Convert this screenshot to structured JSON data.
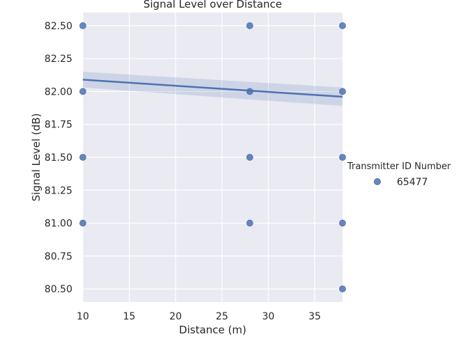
{
  "chart_data": {
    "type": "scatter",
    "title": "Signal Level over Distance",
    "xlabel": "Distance (m)",
    "ylabel": "Signal Level (dB)",
    "xlim": [
      10,
      38
    ],
    "ylim": [
      80.4,
      82.6
    ],
    "x_ticks": [
      10,
      15,
      20,
      25,
      30,
      35
    ],
    "x_tick_labels": [
      "10",
      "15",
      "20",
      "25",
      "30",
      "35"
    ],
    "y_ticks": [
      80.5,
      80.75,
      81.0,
      81.25,
      81.5,
      81.75,
      82.0,
      82.25,
      82.5
    ],
    "y_tick_labels": [
      "80.50",
      "80.75",
      "81.00",
      "81.25",
      "81.50",
      "81.75",
      "82.00",
      "82.25",
      "82.50"
    ],
    "grid": true,
    "legend": {
      "title": "Transmitter ID Number",
      "placement": "right",
      "entries": [
        "65477"
      ]
    },
    "series": [
      {
        "name": "65477",
        "color": "#4c72b0",
        "points": [
          {
            "x": 10,
            "y": 82.5
          },
          {
            "x": 10,
            "y": 82.0
          },
          {
            "x": 10,
            "y": 81.5
          },
          {
            "x": 10,
            "y": 81.0
          },
          {
            "x": 28,
            "y": 82.5
          },
          {
            "x": 28,
            "y": 82.0
          },
          {
            "x": 28,
            "y": 81.5
          },
          {
            "x": 28,
            "y": 81.0
          },
          {
            "x": 38,
            "y": 82.5
          },
          {
            "x": 38,
            "y": 82.0
          },
          {
            "x": 38,
            "y": 81.5
          },
          {
            "x": 38,
            "y": 81.0
          },
          {
            "x": 38,
            "y": 80.5
          }
        ]
      }
    ],
    "regression": {
      "x": [
        10,
        38
      ],
      "y": [
        82.09,
        81.96
      ],
      "ci_lower": [
        82.03,
        81.89
      ],
      "ci_upper": [
        82.15,
        82.03
      ],
      "color": "#4c72b0"
    }
  }
}
